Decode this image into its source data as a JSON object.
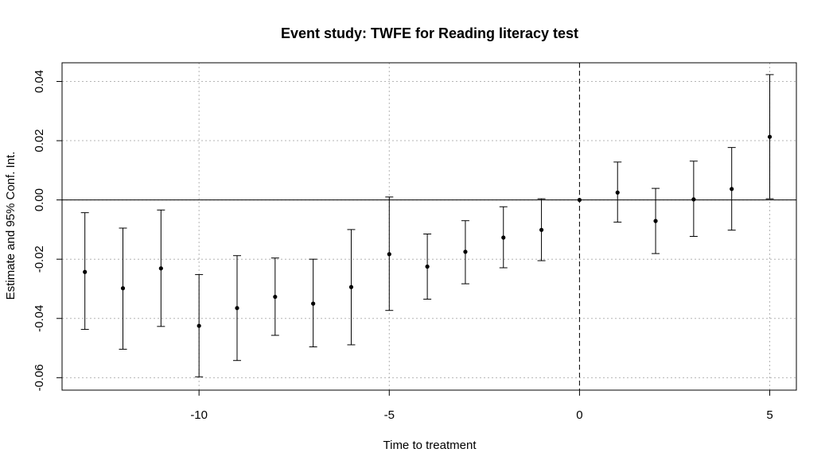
{
  "chart_data": {
    "type": "scatter",
    "title": "Event study: TWFE for Reading literacy test",
    "xlabel": "Time to treatment",
    "ylabel": "Estimate and 95% Conf. Int.",
    "xlim": [
      -13.6,
      5.7
    ],
    "ylim": [
      -0.0642,
      0.0463
    ],
    "x_ticks": [
      -10,
      -5,
      0,
      5
    ],
    "x_tick_labels": [
      "-10",
      "-5",
      "0",
      "5"
    ],
    "y_ticks": [
      -0.06,
      -0.04,
      -0.02,
      0.0,
      0.02,
      0.04
    ],
    "y_tick_labels": [
      "-0.06",
      "-0.04",
      "-0.02",
      "0.00",
      "0.02",
      "0.04"
    ],
    "grid": true,
    "reference_lines": {
      "horizontal_zero": "solid",
      "vertical_at_zero": "dashed"
    },
    "points": [
      {
        "x": -13,
        "estimate": -0.0243,
        "lower": -0.0437,
        "upper": -0.0043
      },
      {
        "x": -12,
        "estimate": -0.0298,
        "lower": -0.0504,
        "upper": -0.0095
      },
      {
        "x": -11,
        "estimate": -0.0231,
        "lower": -0.0427,
        "upper": -0.0034
      },
      {
        "x": -10,
        "estimate": -0.0425,
        "lower": -0.0597,
        "upper": -0.0252
      },
      {
        "x": -9,
        "estimate": -0.0365,
        "lower": -0.0542,
        "upper": -0.0188
      },
      {
        "x": -8,
        "estimate": -0.0327,
        "lower": -0.0457,
        "upper": -0.0196
      },
      {
        "x": -7,
        "estimate": -0.035,
        "lower": -0.0496,
        "upper": -0.02
      },
      {
        "x": -6,
        "estimate": -0.0294,
        "lower": -0.0489,
        "upper": -0.01
      },
      {
        "x": -5,
        "estimate": -0.0183,
        "lower": -0.0373,
        "upper": 0.001
      },
      {
        "x": -4,
        "estimate": -0.0225,
        "lower": -0.0335,
        "upper": -0.0115
      },
      {
        "x": -3,
        "estimate": -0.0175,
        "lower": -0.0283,
        "upper": -0.007
      },
      {
        "x": -2,
        "estimate": -0.0127,
        "lower": -0.0229,
        "upper": -0.0023
      },
      {
        "x": -1,
        "estimate": -0.0101,
        "lower": -0.0205,
        "upper": 0.0004
      },
      {
        "x": 0,
        "estimate": 0.0,
        "lower": 0.0,
        "upper": 0.0
      },
      {
        "x": 1,
        "estimate": 0.0025,
        "lower": -0.0075,
        "upper": 0.0128
      },
      {
        "x": 2,
        "estimate": -0.0071,
        "lower": -0.0181,
        "upper": 0.0039
      },
      {
        "x": 3,
        "estimate": 0.0002,
        "lower": -0.0123,
        "upper": 0.0131
      },
      {
        "x": 4,
        "estimate": 0.0037,
        "lower": -0.0102,
        "upper": 0.0177
      },
      {
        "x": 5,
        "estimate": 0.0213,
        "lower": 0.0004,
        "upper": 0.0423
      }
    ]
  }
}
